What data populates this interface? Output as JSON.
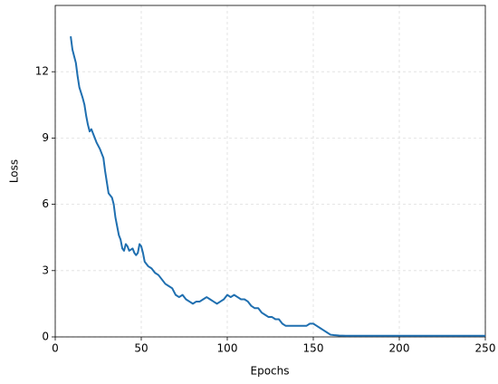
{
  "chart_data": {
    "type": "line",
    "xlabel": "Epochs",
    "ylabel": "Loss",
    "xlim": [
      0,
      250
    ],
    "ylim": [
      0,
      15
    ],
    "xticks": [
      0,
      50,
      100,
      150,
      200,
      250
    ],
    "yticks": [
      0,
      3,
      6,
      9,
      12
    ],
    "grid": true,
    "x": [
      9,
      10,
      12,
      13,
      14,
      16,
      17,
      18,
      19,
      20,
      21,
      22,
      24,
      26,
      28,
      29,
      30,
      31,
      33,
      34,
      35,
      36,
      37,
      38,
      39,
      40,
      41,
      42,
      43,
      45,
      46,
      47,
      48,
      49,
      50,
      51,
      52,
      54,
      56,
      58,
      60,
      62,
      64,
      66,
      68,
      70,
      72,
      74,
      76,
      78,
      80,
      82,
      84,
      86,
      88,
      90,
      92,
      94,
      96,
      98,
      100,
      102,
      104,
      106,
      108,
      110,
      112,
      114,
      116,
      118,
      120,
      122,
      124,
      126,
      128,
      130,
      132,
      134,
      136,
      138,
      140,
      142,
      144,
      146,
      148,
      150,
      152,
      154,
      156,
      158,
      160,
      162,
      165,
      170,
      180,
      200,
      220,
      250
    ],
    "series": [
      {
        "color": "#1f6fb0",
        "values": [
          13.6,
          13.0,
          12.4,
          11.8,
          11.3,
          10.8,
          10.5,
          10.0,
          9.6,
          9.3,
          9.4,
          9.2,
          8.8,
          8.5,
          8.1,
          7.5,
          7.0,
          6.5,
          6.3,
          6.0,
          5.4,
          5.0,
          4.6,
          4.4,
          4.0,
          3.9,
          4.2,
          4.1,
          3.9,
          4.0,
          3.8,
          3.7,
          3.8,
          4.2,
          4.1,
          3.8,
          3.4,
          3.2,
          3.1,
          2.9,
          2.8,
          2.6,
          2.4,
          2.3,
          2.2,
          1.9,
          1.8,
          1.9,
          1.7,
          1.6,
          1.5,
          1.6,
          1.6,
          1.7,
          1.8,
          1.7,
          1.6,
          1.5,
          1.6,
          1.7,
          1.9,
          1.8,
          1.9,
          1.8,
          1.7,
          1.7,
          1.6,
          1.4,
          1.3,
          1.3,
          1.1,
          1.0,
          0.9,
          0.9,
          0.8,
          0.8,
          0.6,
          0.5,
          0.5,
          0.5,
          0.5,
          0.5,
          0.5,
          0.5,
          0.6,
          0.6,
          0.5,
          0.4,
          0.3,
          0.2,
          0.1,
          0.08,
          0.06,
          0.05,
          0.05,
          0.05,
          0.05,
          0.05
        ]
      }
    ]
  }
}
